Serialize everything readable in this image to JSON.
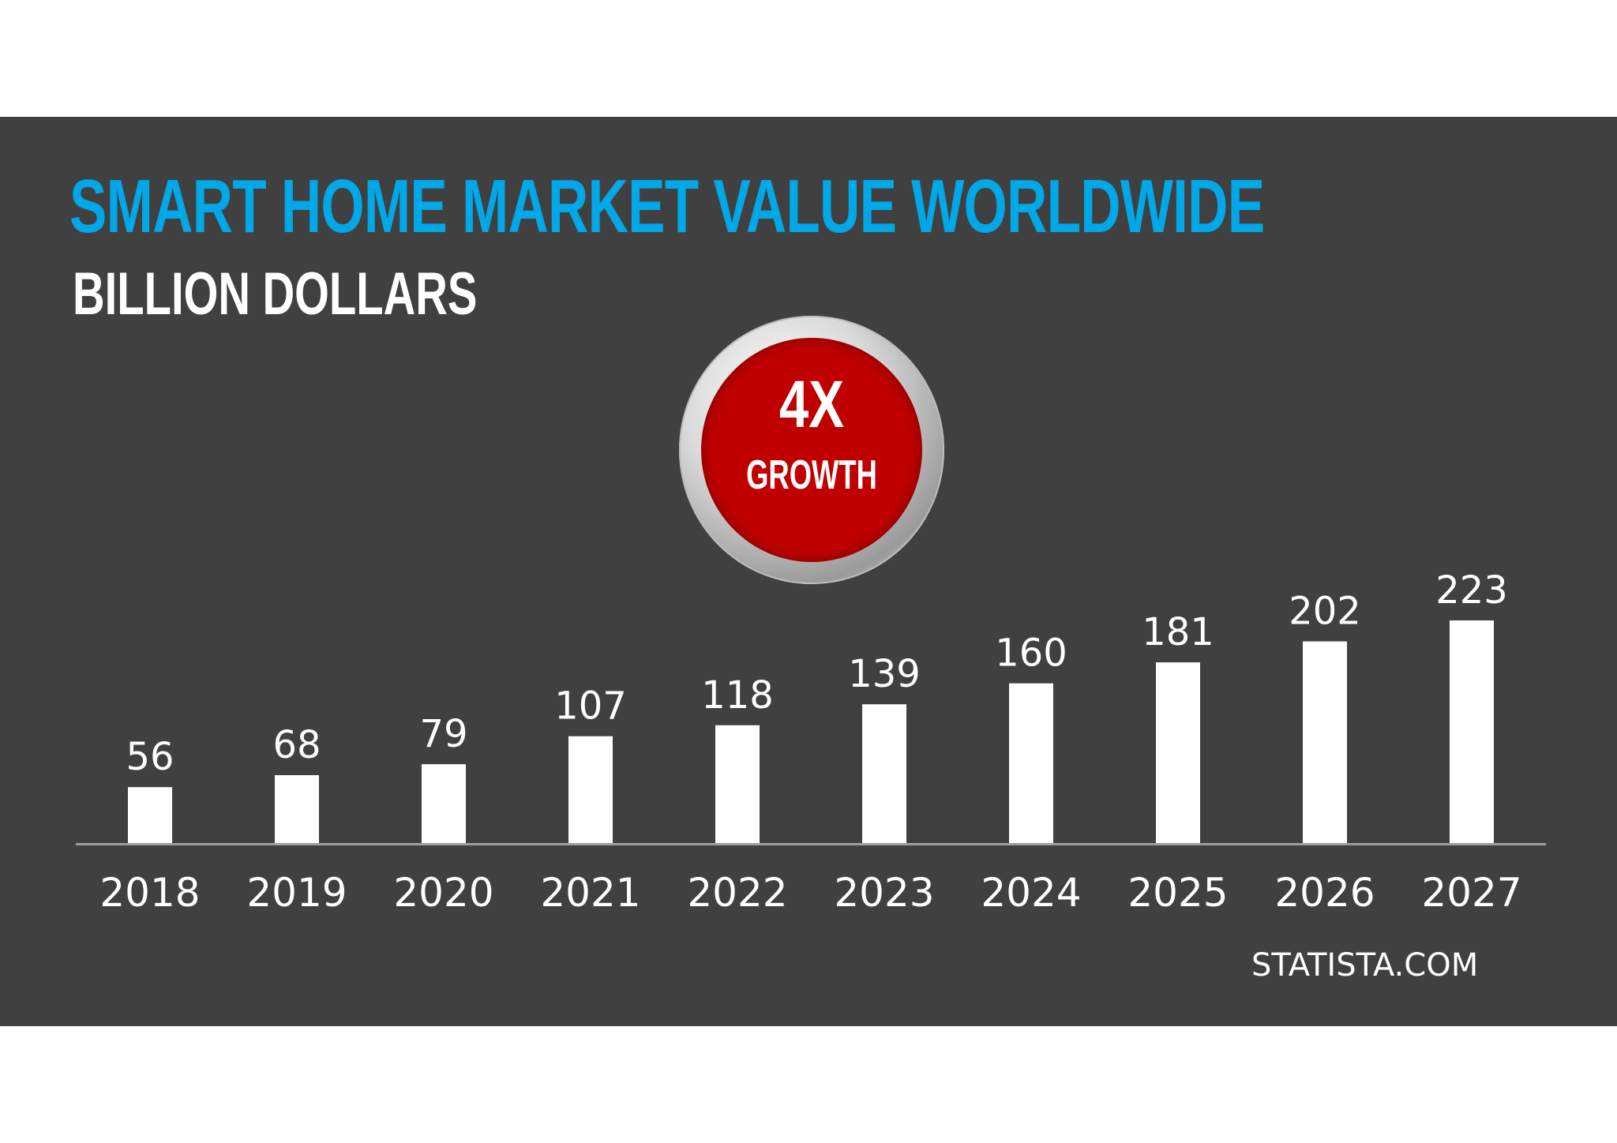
{
  "title": "SMART HOME MARKET VALUE WORLDWIDE",
  "subtitle": "BILLION DOLLARS",
  "badge": {
    "big": "4X",
    "small": "GROWTH"
  },
  "source": "STATISTA.COM",
  "colors": {
    "background": "#404040",
    "title": "#00a8e8",
    "bars": "#ffffff",
    "badge": "#c00000",
    "axis": "#9e9e9e"
  },
  "chart_data": {
    "type": "bar",
    "title": "SMART HOME MARKET VALUE WORLDWIDE",
    "ylabel": "BILLION DOLLARS",
    "xlabel": "",
    "categories": [
      "2018",
      "2019",
      "2020",
      "2021",
      "2022",
      "2023",
      "2024",
      "2025",
      "2026",
      "2027"
    ],
    "values": [
      56,
      68,
      79,
      107,
      118,
      139,
      160,
      181,
      202,
      223
    ],
    "data_labels": true,
    "grid": false,
    "legend": "none",
    "ylim": [
      0,
      223
    ]
  }
}
